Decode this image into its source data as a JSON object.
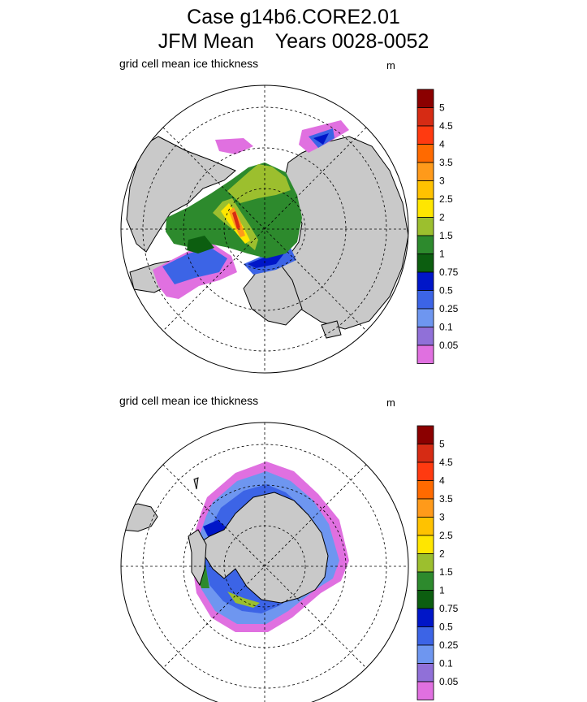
{
  "header": {
    "case_line": "Case g14b6.CORE2.01",
    "mean_label": "JFM Mean",
    "years_label": "Years 0028-0052"
  },
  "panels": [
    {
      "variable": "grid cell mean ice thickness",
      "unit": "m"
    },
    {
      "variable": "grid cell mean ice thickness",
      "unit": "m"
    }
  ],
  "colorbar": {
    "levels": [
      "5",
      "4.5",
      "4",
      "3.5",
      "3",
      "2.5",
      "2",
      "1.5",
      "1",
      "0.75",
      "0.5",
      "0.25",
      "0.1",
      "0.05"
    ],
    "colors": [
      "#8b0000",
      "#d62b14",
      "#ff3a10",
      "#ff6a00",
      "#ff9a1a",
      "#ffc200",
      "#ffe600",
      "#9cbf2e",
      "#2d8a2d",
      "#0c5e10",
      "#0016c8",
      "#3c64e6",
      "#6e96f0",
      "#9070d8",
      "#e070e0"
    ]
  },
  "palette": {
    "land": "#c9c9c9",
    "ocean": "#ffffff"
  }
}
